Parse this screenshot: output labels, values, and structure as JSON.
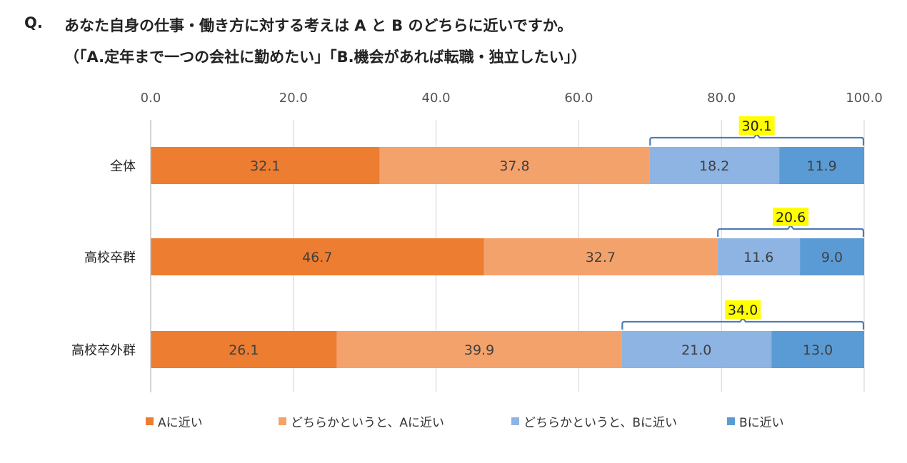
{
  "title": {
    "q_label": "Q.",
    "line1": "あなた自身の仕事・働き方に対する考えは A と B のどちらに近いですか。",
    "line2": "（「A.定年まで一つの会社に勤めたい」「B.機会があれば転職・独立したい」）"
  },
  "colors": {
    "a_near": "#ED7D31",
    "a_lean": "#F4A26B",
    "b_lean": "#8DB4E2",
    "b_near": "#5B9BD5",
    "bracket": "#4F7BB5",
    "highlight": "#FFFF00",
    "grid": "#D9D9D9"
  },
  "chart_data": {
    "type": "bar",
    "orientation": "horizontal",
    "stacked": true,
    "categories": [
      "全体",
      "高校卒群",
      "高校卒外群"
    ],
    "series": [
      {
        "name": "Aに近い",
        "values": [
          32.1,
          46.7,
          26.1
        ]
      },
      {
        "name": "どちらかというと、Aに近い",
        "values": [
          37.8,
          32.7,
          39.9
        ]
      },
      {
        "name": "どちらかというと、Bに近い",
        "values": [
          18.2,
          11.6,
          21.0
        ]
      },
      {
        "name": "Bに近い",
        "values": [
          11.9,
          9.0,
          13.0
        ]
      }
    ],
    "b_totals": [
      "30.1",
      "20.6",
      "34.0"
    ],
    "x_ticks": [
      "0.0",
      "20.0",
      "40.0",
      "60.0",
      "80.0",
      "100.0"
    ],
    "xlim": [
      0,
      100
    ],
    "legend_position": "bottom"
  }
}
